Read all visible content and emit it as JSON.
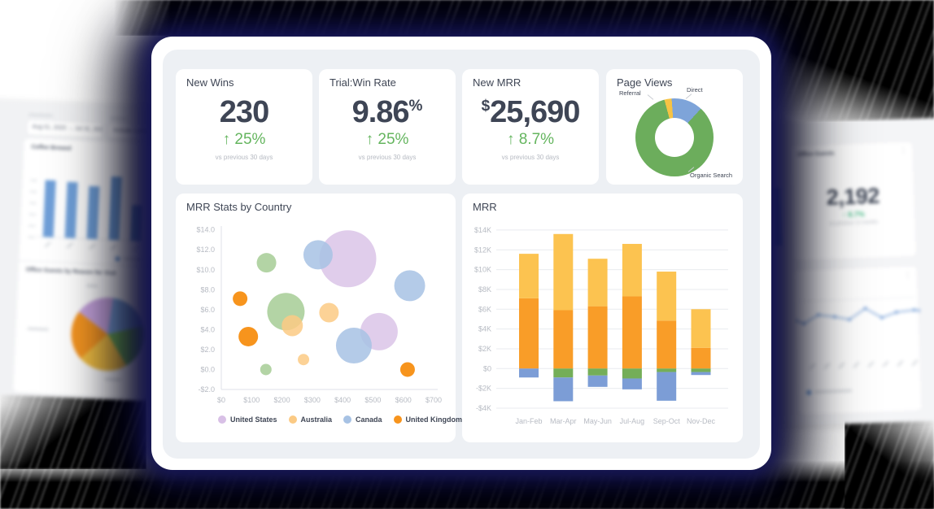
{
  "kpi_cards": [
    {
      "title": "New Wins",
      "prefix": "",
      "value": "230",
      "suffix": "",
      "delta": "↑ 25%",
      "note": "vs previous 30 days"
    },
    {
      "title": "Trial:Win Rate",
      "prefix": "",
      "value": "9.86",
      "suffix": "%",
      "delta": "↑ 25%",
      "note": "vs previous 30 days"
    },
    {
      "title": "New MRR",
      "prefix": "$",
      "value": "25,690",
      "suffix": "",
      "delta": "↑ 8.7%",
      "note": "vs previous 30 days"
    }
  ],
  "background_left": {
    "date_range": "Aug 01, 2020  →  Jul 31, 2021",
    "filter_label": "Include Coffee...",
    "bar_title": "Coffee Brewed",
    "pie_title": "Office Guests by Reason for Visit"
  },
  "background_right": {
    "panel_title": "Office Guests",
    "value": "2,192",
    "delta": "↑ 8.7%",
    "note": "vs previous 12 months"
  },
  "colors": {
    "accent_green": "#64b55e",
    "number_slate": "#3e4555",
    "panel_gray": "#edf0f4",
    "shadow_navy": "#16165a",
    "axis_text": "#b7bbc3"
  },
  "chart_data": [
    {
      "id": "page_views",
      "type": "pie",
      "donut": true,
      "title": "Page Views",
      "start_deg": -15,
      "segments": [
        {
          "label": "Referral",
          "percent": 3,
          "color": "#f6c344"
        },
        {
          "label": "Direct",
          "percent": 13,
          "color": "#7ea4d9"
        },
        {
          "label": "Organic Search",
          "percent": 84,
          "color": "#6cad5c"
        }
      ]
    },
    {
      "id": "mrr_by_country",
      "type": "scatter",
      "bubble": true,
      "title": "MRR Stats by Country",
      "xlim": [
        0,
        700
      ],
      "ylim": [
        -2,
        14
      ],
      "legend_position": "bottom",
      "grid": false,
      "x_ticks": [
        {
          "label": "$0",
          "value": 0
        },
        {
          "label": "$100",
          "value": 100
        },
        {
          "label": "$200",
          "value": 200
        },
        {
          "label": "$300",
          "value": 300
        },
        {
          "label": "$400",
          "value": 400
        },
        {
          "label": "$500",
          "value": 500
        },
        {
          "label": "$600",
          "value": 600
        },
        {
          "label": "$700",
          "value": 700
        }
      ],
      "y_ticks": [
        {
          "label": "$14.0",
          "value": 14
        },
        {
          "label": "$12.0",
          "value": 12
        },
        {
          "label": "$10.0",
          "value": 10
        },
        {
          "label": "$8.0",
          "value": 8
        },
        {
          "label": "$6.0",
          "value": 6
        },
        {
          "label": "$4.0",
          "value": 4
        },
        {
          "label": "$2.0",
          "value": 2
        },
        {
          "label": "$0.0",
          "value": 0
        },
        {
          "label": "-$2.0",
          "value": -2
        }
      ],
      "series": [
        {
          "name": "United States",
          "color": "#d8c0e6",
          "opacity": 0.8,
          "points": [
            {
              "x": 417,
              "y": 11.1,
              "r": 35
            },
            {
              "x": 520,
              "y": 3.8,
              "r": 23
            }
          ]
        },
        {
          "name": "Australia",
          "color": "#fbca84",
          "opacity": 0.85,
          "points": [
            {
              "x": 355,
              "y": 5.7,
              "r": 12
            },
            {
              "x": 234,
              "y": 4.4,
              "r": 13
            },
            {
              "x": 271,
              "y": 1.0,
              "r": 7
            }
          ]
        },
        {
          "name": "Canada",
          "color": "#a7c2e4",
          "opacity": 0.85,
          "points": [
            {
              "x": 319,
              "y": 11.5,
              "r": 18
            },
            {
              "x": 621,
              "y": 8.4,
              "r": 19
            },
            {
              "x": 437,
              "y": 2.4,
              "r": 22
            }
          ]
        },
        {
          "name": "United Kingdom",
          "color": "#f7941d",
          "opacity": 1,
          "points": [
            {
              "x": 62,
              "y": 7.1,
              "r": 9
            },
            {
              "x": 89,
              "y": 3.3,
              "r": 12
            },
            {
              "x": 614,
              "y": 0.0,
              "r": 9
            }
          ]
        },
        {
          "name": "",
          "in_legend": false,
          "color": "#a6cc95",
          "opacity": 0.85,
          "points": [
            {
              "x": 149,
              "y": 10.7,
              "r": 12
            },
            {
              "x": 213,
              "y": 5.8,
              "r": 23
            },
            {
              "x": 147,
              "y": 0.0,
              "r": 7
            }
          ]
        }
      ]
    },
    {
      "id": "mrr",
      "type": "bar",
      "stacked": true,
      "title": "MRR",
      "categories": [
        "Jan-Feb",
        "Mar-Apr",
        "May-Jun",
        "Jul-Aug",
        "Sep-Oct",
        "Nov-Dec"
      ],
      "unit": "$K",
      "ylim": [
        -4,
        14
      ],
      "grid": true,
      "y_ticks": [
        {
          "label": "$14K",
          "value": 14
        },
        {
          "label": "$12K",
          "value": 12
        },
        {
          "label": "$10K",
          "value": 10
        },
        {
          "label": "$8K",
          "value": 8
        },
        {
          "label": "$6K",
          "value": 6
        },
        {
          "label": "$4K",
          "value": 4
        },
        {
          "label": "$2K",
          "value": 2
        },
        {
          "label": "$0",
          "value": 0
        },
        {
          "label": "-$2K",
          "value": -2
        },
        {
          "label": "-$4K",
          "value": -4
        }
      ],
      "series": [
        {
          "key": "orange",
          "color": "#f99d28",
          "values": [
            7.1,
            5.9,
            6.3,
            7.3,
            4.85,
            2.1
          ]
        },
        {
          "key": "amber",
          "color": "#fcc350",
          "values": [
            4.5,
            7.7,
            4.8,
            5.3,
            4.95,
            3.9
          ]
        },
        {
          "key": "green",
          "color": "#74ae58",
          "values": [
            0,
            -0.9,
            -0.7,
            -1.0,
            -0.35,
            -0.35
          ]
        },
        {
          "key": "blue",
          "color": "#7c9dd6",
          "values": [
            -0.9,
            -2.4,
            -1.15,
            -1.1,
            -2.9,
            -0.3
          ]
        }
      ]
    },
    {
      "id": "bg_left_bars",
      "type": "bar",
      "color": "#6f9fd8",
      "heights": [
        70,
        69,
        65,
        78,
        44
      ],
      "blurred": true
    },
    {
      "id": "bg_left_pie",
      "type": "pie",
      "start_deg": -55,
      "blurred": true,
      "segments": [
        {
          "percent": 17,
          "color": "#c9a6e0"
        },
        {
          "percent": 19,
          "color": "#7ba3d9"
        },
        {
          "percent": 20,
          "color": "#6fae57"
        },
        {
          "percent": 22,
          "color": "#f6c243"
        },
        {
          "percent": 22,
          "color": "#f79722"
        }
      ]
    },
    {
      "id": "bg_right_line",
      "type": "line",
      "color": "#7ba3d9",
      "blurred": true,
      "points": [
        [
          0,
          14
        ],
        [
          10,
          18
        ],
        [
          28,
          8
        ],
        [
          48,
          11
        ],
        [
          66,
          15
        ],
        [
          86,
          2
        ],
        [
          106,
          14
        ],
        [
          124,
          8
        ],
        [
          146,
          6
        ],
        [
          153,
          7
        ]
      ]
    }
  ]
}
